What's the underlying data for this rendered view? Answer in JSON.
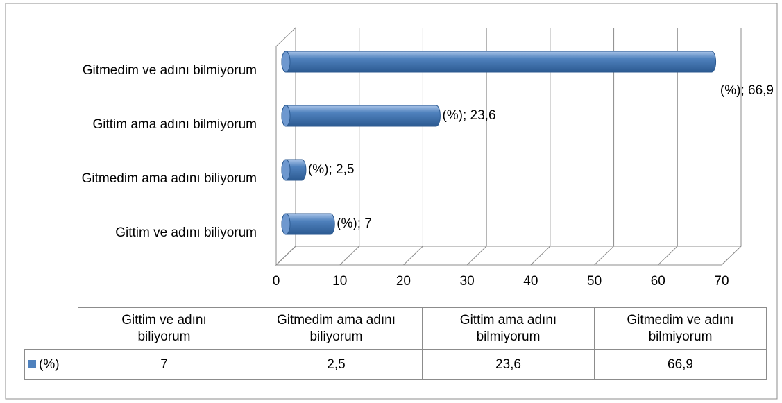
{
  "chart_data": {
    "type": "bar3d",
    "orientation": "horizontal",
    "categories": [
      "Gittim ve adını biliyorum",
      "Gitmedim ama adını biliyorum",
      "Gittim ama adını bilmiyorum",
      "Gitmedim ve adını bilmiyorum"
    ],
    "series": [
      {
        "name": "(%)",
        "color": "#4f81bd",
        "values": [
          7,
          2.5,
          23.6,
          66.9
        ],
        "value_labels": [
          "(%); 7",
          "(%); 2,5",
          "(%); 23,6",
          "(%); 66,9"
        ],
        "table_value_labels": [
          "7",
          "2,5",
          "23,6",
          "66,9"
        ]
      }
    ],
    "xlim": [
      0,
      70
    ],
    "xticks": [
      0,
      10,
      20,
      30,
      40,
      50,
      60,
      70
    ],
    "grid": true,
    "data_table": true
  }
}
